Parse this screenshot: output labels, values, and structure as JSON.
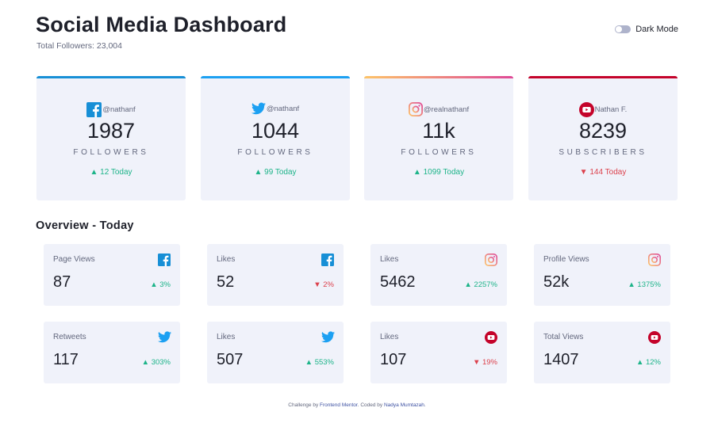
{
  "header": {
    "title": "Social Media Dashboard",
    "subtitle": "Total Followers: 23,004",
    "dark_mode_label": "Dark Mode"
  },
  "colors": {
    "facebook": "#178fd6",
    "twitter": "#1ca0f2",
    "instagram_start": "#fdc468",
    "instagram_end": "#df4996",
    "youtube": "#c4032a",
    "up": "#1db489",
    "down": "#dc414c"
  },
  "cards": [
    {
      "icon": "facebook-icon",
      "handle": "@nathanf",
      "count": "1987",
      "unit": "FOLLOWERS",
      "today": "▲ 12 Today",
      "trend": "up"
    },
    {
      "icon": "twitter-icon",
      "handle": "@nathanf",
      "count": "1044",
      "unit": "FOLLOWERS",
      "today": "▲ 99 Today",
      "trend": "up"
    },
    {
      "icon": "instagram-icon",
      "handle": "@realnathanf",
      "count": "11k",
      "unit": "FOLLOWERS",
      "today": "▲ 1099 Today",
      "trend": "up"
    },
    {
      "icon": "youtube-icon",
      "handle": "Nathan F.",
      "count": "8239",
      "unit": "SUBSCRIBERS",
      "today": "▼ 144 Today",
      "trend": "down"
    }
  ],
  "overview": {
    "title": "Overview - Today",
    "items": [
      {
        "label": "Page Views",
        "icon": "facebook-icon",
        "value": "87",
        "pct": "▲ 3%",
        "trend": "up"
      },
      {
        "label": "Likes",
        "icon": "facebook-icon",
        "value": "52",
        "pct": "▼ 2%",
        "trend": "down"
      },
      {
        "label": "Likes",
        "icon": "instagram-icon",
        "value": "5462",
        "pct": "▲ 2257%",
        "trend": "up"
      },
      {
        "label": "Profile Views",
        "icon": "instagram-icon",
        "value": "52k",
        "pct": "▲ 1375%",
        "trend": "up"
      },
      {
        "label": "Retweets",
        "icon": "twitter-icon",
        "value": "117",
        "pct": "▲ 303%",
        "trend": "up"
      },
      {
        "label": "Likes",
        "icon": "twitter-icon",
        "value": "507",
        "pct": "▲ 553%",
        "trend": "up"
      },
      {
        "label": "Likes",
        "icon": "youtube-icon",
        "value": "107",
        "pct": "▼ 19%",
        "trend": "down"
      },
      {
        "label": "Total Views",
        "icon": "youtube-icon",
        "value": "1407",
        "pct": "▲ 12%",
        "trend": "up"
      }
    ]
  },
  "footer": {
    "prefix": "Challenge by ",
    "link1": "Frontend Mentor",
    "middle": ". Coded by ",
    "link2": "Nadya Mumtazah",
    "suffix": "."
  }
}
